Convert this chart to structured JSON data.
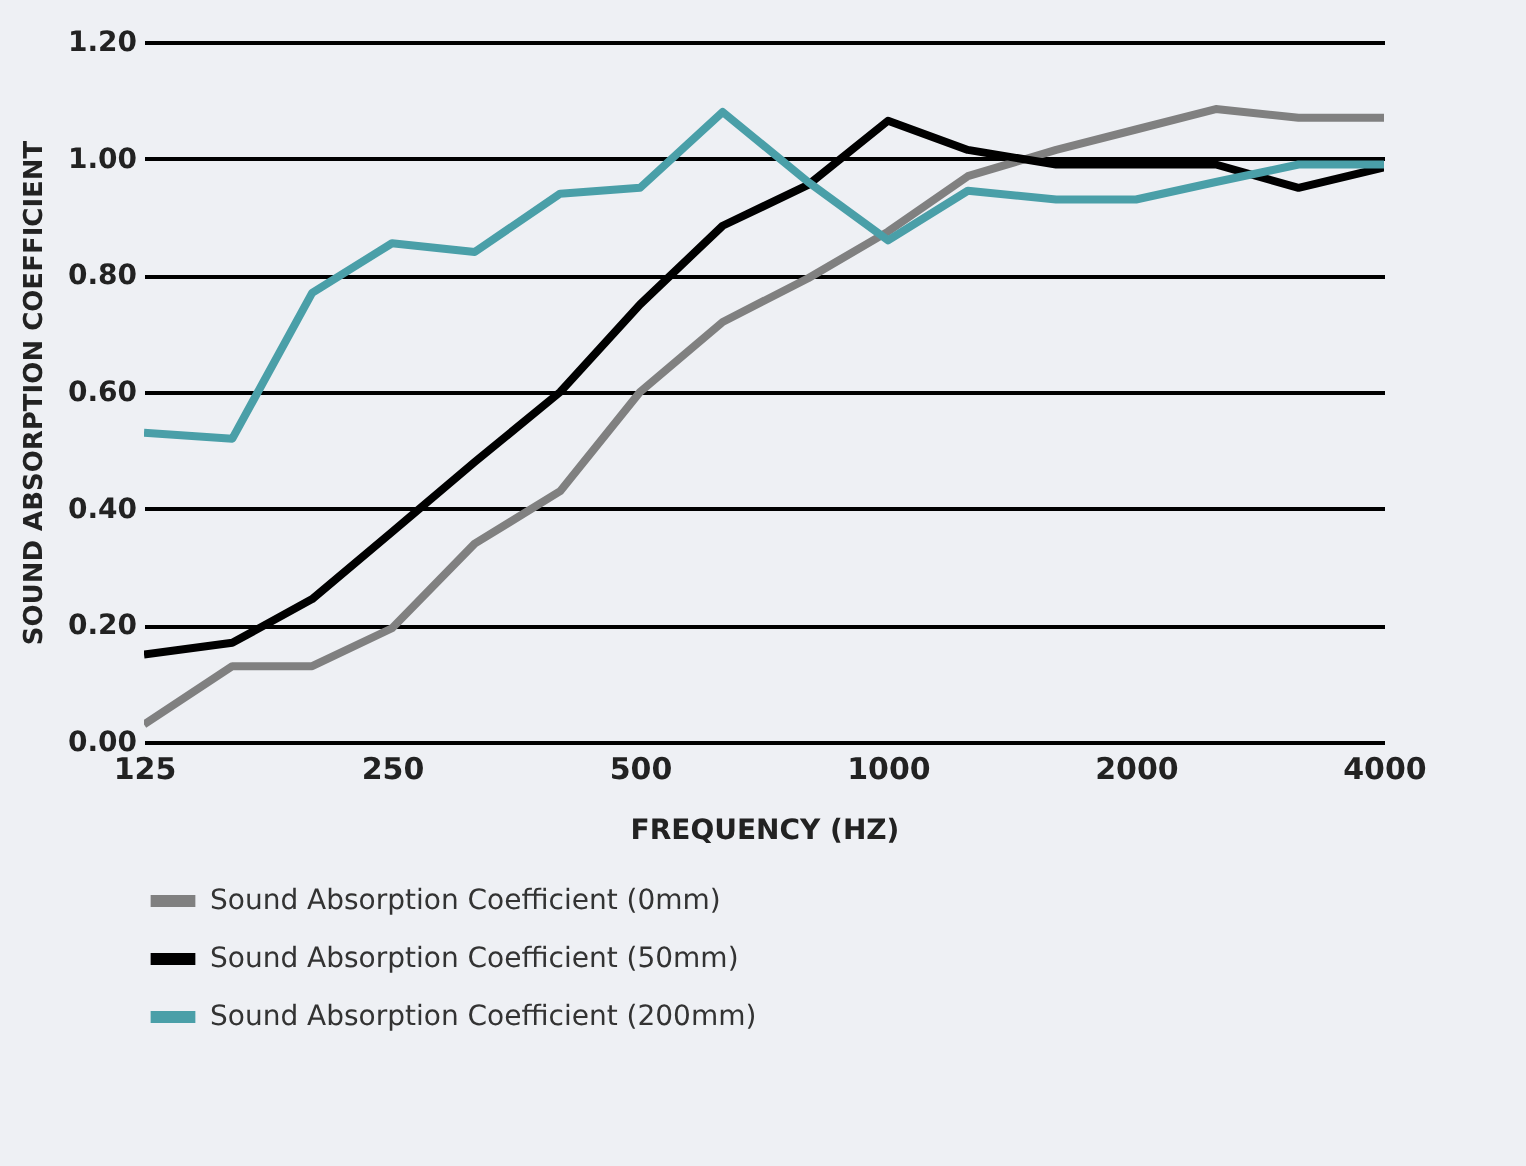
{
  "chart_data": {
    "type": "line",
    "xlabel": "FREQUENCY (HZ)",
    "ylabel": "SOUND ABSORPTION COEFFICIENT",
    "x": [
      125,
      160,
      200,
      250,
      315,
      400,
      500,
      630,
      800,
      1000,
      1250,
      1600,
      2000,
      2500,
      3150,
      4000
    ],
    "log": "x",
    "xlim": [
      125,
      4000
    ],
    "xticks": [
      125,
      250,
      500,
      1000,
      2000,
      4000
    ],
    "ylim": [
      0,
      1.2
    ],
    "yticks": [
      {
        "value": 0,
        "label": "0.00"
      },
      {
        "value": 0.2,
        "label": "0.20"
      },
      {
        "value": 0.4,
        "label": "0.40"
      },
      {
        "value": 0.6,
        "label": "0.60"
      },
      {
        "value": 0.8,
        "label": "0.80"
      },
      {
        "value": 1,
        "label": "1.00"
      },
      {
        "value": 1.2,
        "label": "1.20"
      }
    ],
    "grid": "y",
    "legend": "bottom",
    "marker": "none",
    "line_style": "solid",
    "series": [
      {
        "name": "Sound Absorption Coefficient (0mm)",
        "color": "#808080",
        "values": [
          0.03,
          0.13,
          0.13,
          0.195,
          0.34,
          0.43,
          0.6,
          0.72,
          0.795,
          0.875,
          0.97,
          1.015,
          1.05,
          1.085,
          1.07,
          1.07
        ]
      },
      {
        "name": "Sound Absorption Coefficient (50mm)",
        "color": "#000000",
        "values": [
          0.15,
          0.17,
          0.245,
          0.36,
          0.48,
          0.6,
          0.75,
          0.885,
          0.955,
          1.065,
          1.015,
          0.99,
          0.99,
          0.99,
          0.95,
          0.985
        ]
      },
      {
        "name": "Sound Absorption Coefficient (200mm)",
        "color": "#4a9fa8",
        "values": [
          0.53,
          0.52,
          0.77,
          0.855,
          0.84,
          0.94,
          0.95,
          1.08,
          0.96,
          0.86,
          0.945,
          0.93,
          0.93,
          0.96,
          0.99,
          0.99
        ]
      }
    ]
  }
}
